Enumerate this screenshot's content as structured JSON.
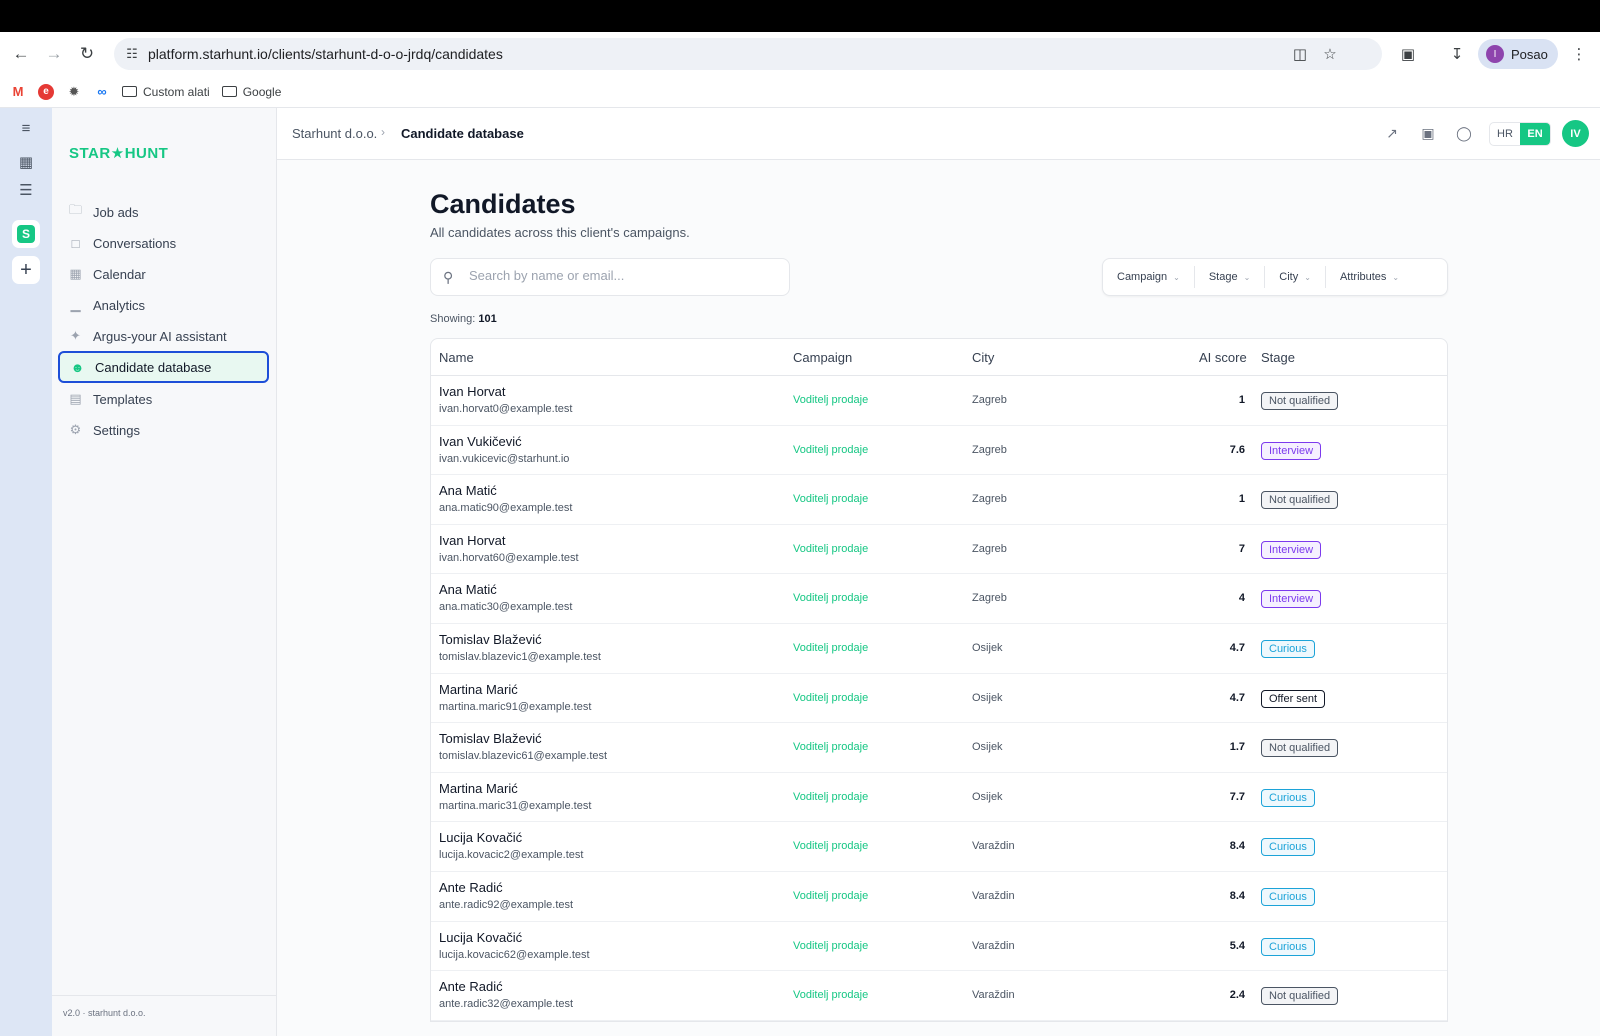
{
  "browser": {
    "url": "platform.starhunt.io/clients/starhunt-d-o-o-jrdq/candidates",
    "profile_initial": "I",
    "profile_name": "Posao",
    "bookmarks": [
      {
        "icon": "gmail-icon",
        "label": ""
      },
      {
        "icon": "e-icon",
        "label": ""
      },
      {
        "icon": "openai-icon",
        "label": ""
      },
      {
        "icon": "meta-icon",
        "label": ""
      },
      {
        "icon": "folder-icon",
        "label": "Custom alati"
      },
      {
        "icon": "folder-icon",
        "label": "Google"
      }
    ]
  },
  "brand": {
    "logo_left": "STAR",
    "logo_star": "★",
    "logo_right": "HUNT",
    "accent": "#16c784"
  },
  "sidebar": {
    "items": [
      {
        "label": "Job ads",
        "icon": "folder-icon"
      },
      {
        "label": "Conversations",
        "icon": "chat-icon"
      },
      {
        "label": "Calendar",
        "icon": "calendar-icon"
      },
      {
        "label": "Analytics",
        "icon": "bar-chart-icon"
      },
      {
        "label": "Argus-your AI assistant",
        "icon": "sparkles-icon"
      },
      {
        "label": "Candidate database",
        "icon": "user-icon",
        "active": true
      },
      {
        "label": "Templates",
        "icon": "document-icon"
      },
      {
        "label": "Settings",
        "icon": "gear-icon"
      }
    ],
    "version": "v2.0 · starhunt d.o.o."
  },
  "header": {
    "breadcrumb_client": "Starhunt d.o.o.",
    "breadcrumb_current": "Candidate database",
    "lang_hr": "HR",
    "lang_en": "EN",
    "user_initials": "IV"
  },
  "page": {
    "title": "Candidates",
    "subtitle": "All candidates across this client's campaigns.",
    "search_placeholder": "Search by name or email...",
    "filters": [
      "Campaign",
      "Stage",
      "City",
      "Attributes"
    ],
    "showing_label": "Showing:",
    "showing_count": "101"
  },
  "table": {
    "columns": [
      "Name",
      "Campaign",
      "City",
      "AI score",
      "Stage"
    ],
    "rows": [
      {
        "name": "Ivan Horvat",
        "email": "ivan.horvat0@example.test",
        "campaign": "Voditelj prodaje",
        "city": "Zagreb",
        "score": "1",
        "stage": "Not qualified",
        "stage_kind": "nq"
      },
      {
        "name": "Ivan Vukičević",
        "email": "ivan.vukicevic@starhunt.io",
        "campaign": "Voditelj prodaje",
        "city": "Zagreb",
        "score": "7.6",
        "stage": "Interview",
        "stage_kind": "iv"
      },
      {
        "name": "Ana Matić",
        "email": "ana.matic90@example.test",
        "campaign": "Voditelj prodaje",
        "city": "Zagreb",
        "score": "1",
        "stage": "Not qualified",
        "stage_kind": "nq"
      },
      {
        "name": "Ivan Horvat",
        "email": "ivan.horvat60@example.test",
        "campaign": "Voditelj prodaje",
        "city": "Zagreb",
        "score": "7",
        "stage": "Interview",
        "stage_kind": "iv"
      },
      {
        "name": "Ana Matić",
        "email": "ana.matic30@example.test",
        "campaign": "Voditelj prodaje",
        "city": "Zagreb",
        "score": "4",
        "stage": "Interview",
        "stage_kind": "iv"
      },
      {
        "name": "Tomislav Blažević",
        "email": "tomislav.blazevic1@example.test",
        "campaign": "Voditelj prodaje",
        "city": "Osijek",
        "score": "4.7",
        "stage": "Curious",
        "stage_kind": "cu"
      },
      {
        "name": "Martina Marić",
        "email": "martina.maric91@example.test",
        "campaign": "Voditelj prodaje",
        "city": "Osijek",
        "score": "4.7",
        "stage": "Offer sent",
        "stage_kind": "of"
      },
      {
        "name": "Tomislav Blažević",
        "email": "tomislav.blazevic61@example.test",
        "campaign": "Voditelj prodaje",
        "city": "Osijek",
        "score": "1.7",
        "stage": "Not qualified",
        "stage_kind": "nq"
      },
      {
        "name": "Martina Marić",
        "email": "martina.maric31@example.test",
        "campaign": "Voditelj prodaje",
        "city": "Osijek",
        "score": "7.7",
        "stage": "Curious",
        "stage_kind": "cu"
      },
      {
        "name": "Lucija Kovačić",
        "email": "lucija.kovacic2@example.test",
        "campaign": "Voditelj prodaje",
        "city": "Varaždin",
        "score": "8.4",
        "stage": "Curious",
        "stage_kind": "cu"
      },
      {
        "name": "Ante Radić",
        "email": "ante.radic92@example.test",
        "campaign": "Voditelj prodaje",
        "city": "Varaždin",
        "score": "8.4",
        "stage": "Curious",
        "stage_kind": "cu"
      },
      {
        "name": "Lucija Kovačić",
        "email": "lucija.kovacic62@example.test",
        "campaign": "Voditelj prodaje",
        "city": "Varaždin",
        "score": "5.4",
        "stage": "Curious",
        "stage_kind": "cu"
      },
      {
        "name": "Ante Radić",
        "email": "ante.radic32@example.test",
        "campaign": "Voditelj prodaje",
        "city": "Varaždin",
        "score": "2.4",
        "stage": "Not qualified",
        "stage_kind": "nq"
      }
    ]
  }
}
